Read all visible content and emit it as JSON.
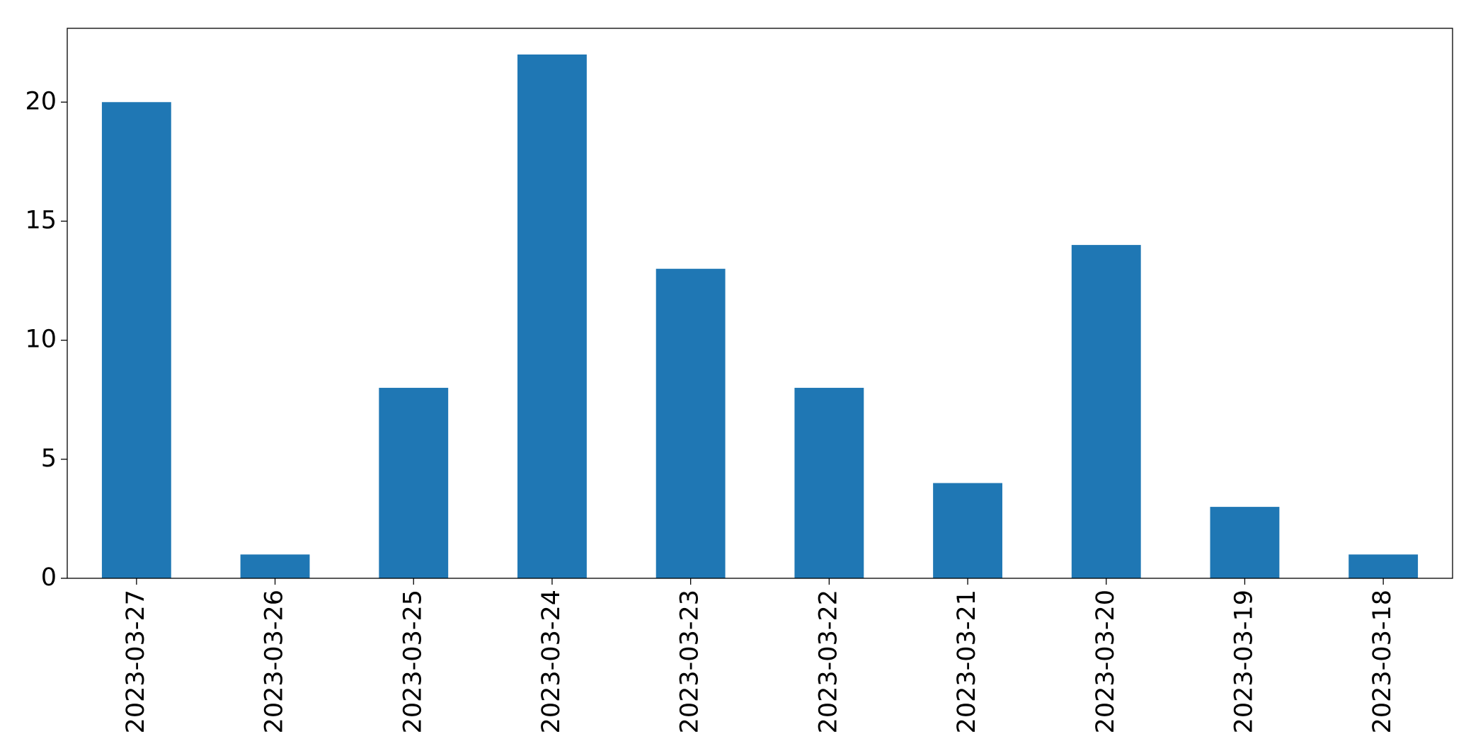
{
  "chart_data": {
    "type": "bar",
    "categories": [
      "2023-03-27",
      "2023-03-26",
      "2023-03-25",
      "2023-03-24",
      "2023-03-23",
      "2023-03-22",
      "2023-03-21",
      "2023-03-20",
      "2023-03-19",
      "2023-03-18"
    ],
    "values": [
      20,
      1,
      8,
      22,
      13,
      8,
      4,
      14,
      3,
      1
    ],
    "color": "#1f77b4",
    "ylim": [
      0,
      23.1
    ],
    "yticks": [
      0,
      5,
      10,
      15,
      20
    ],
    "grid": false
  }
}
